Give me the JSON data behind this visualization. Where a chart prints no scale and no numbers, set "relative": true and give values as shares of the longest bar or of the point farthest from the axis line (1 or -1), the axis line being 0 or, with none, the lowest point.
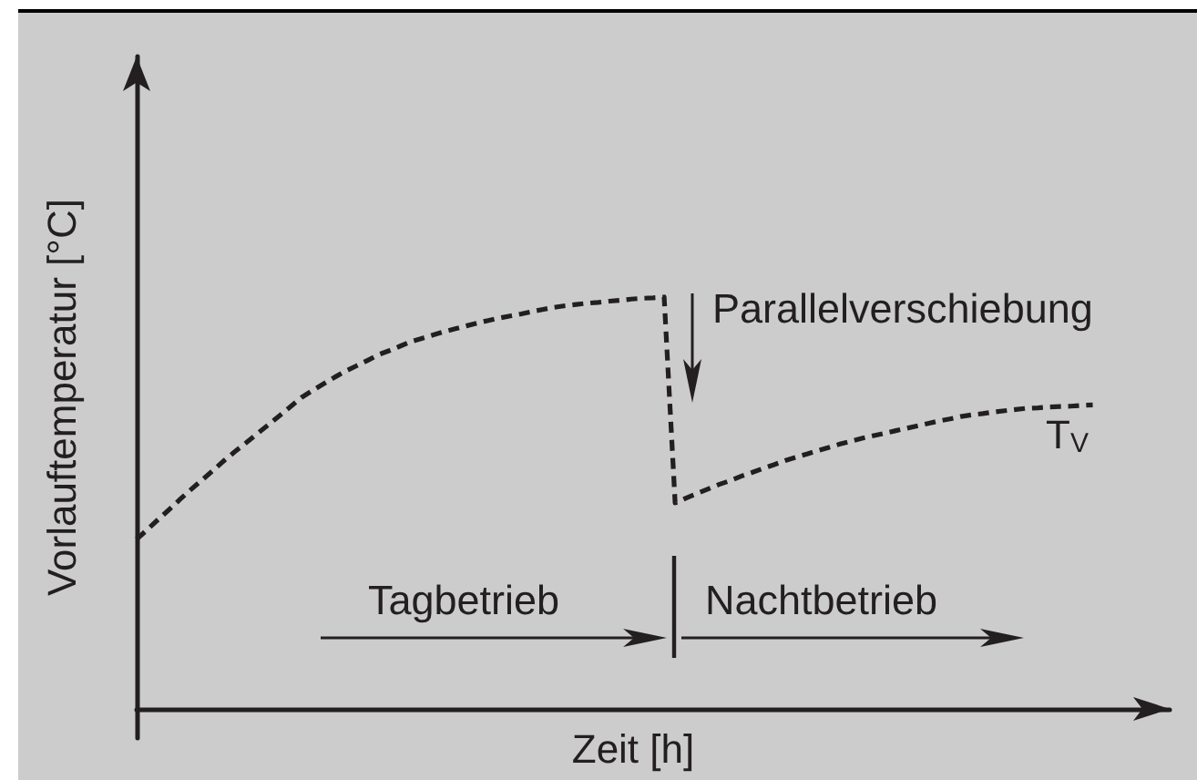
{
  "chart_data": {
    "type": "line",
    "relative": true,
    "xlabel": "Zeit [h]",
    "ylabel": "Vorlauftemperatur [°C]",
    "annotations": [
      "Parallelverschiebung",
      "Tagbetrieb",
      "Nachtbetrieb"
    ],
    "categories": [
      null,
      null,
      null,
      null,
      null,
      null,
      null,
      null,
      null,
      null,
      null,
      null,
      null,
      null,
      null,
      null,
      null,
      null,
      null,
      null,
      null,
      null,
      null,
      null,
      null,
      null,
      null,
      null,
      null,
      null,
      null,
      null,
      null,
      null,
      null,
      null,
      null,
      null,
      null,
      null,
      null,
      null,
      null,
      null,
      null,
      null,
      null,
      null,
      null,
      null,
      null,
      null,
      null,
      null,
      null,
      null,
      null,
      null,
      null,
      null,
      null,
      null,
      null,
      null,
      null,
      null,
      null,
      null,
      null,
      null,
      null,
      null,
      null,
      null,
      null,
      null,
      null,
      null,
      null,
      null,
      null,
      null,
      null,
      null,
      null,
      null,
      null,
      null,
      null,
      null,
      null,
      null,
      null,
      null,
      null
    ],
    "series": [
      {
        "name": "T$_{V}$",
        "color": "#231f20",
        "values": [
          0.412,
          0.436,
          0.461,
          0.485,
          0.51,
          0.534,
          0.557,
          0.58,
          0.604,
          0.626,
          0.647,
          0.669,
          0.69,
          0.712,
          0.734,
          0.756,
          0.773,
          0.789,
          0.805,
          0.82,
          0.833,
          0.846,
          0.86,
          0.87,
          0.881,
          0.892,
          0.9,
          0.908,
          0.916,
          0.923,
          0.93,
          0.937,
          0.943,
          0.949,
          0.954,
          0.959,
          0.965,
          0.97,
          0.975,
          0.979,
          0.982,
          0.985,
          0.987,
          0.99,
          0.992,
          0.995,
          0.997,
          0.998,
          1,
          0.5,
          0.512,
          0.523,
          0.534,
          0.545,
          0.554,
          0.565,
          0.574,
          0.584,
          0.593,
          0.603,
          0.611,
          0.619,
          0.627,
          0.635,
          0.643,
          0.65,
          0.657,
          0.663,
          0.669,
          0.675,
          0.681,
          0.687,
          0.693,
          0.699,
          0.704,
          0.71,
          0.714,
          0.717,
          0.721,
          0.724,
          0.727,
          0.73,
          0.731,
          0.733,
          0.734,
          0.735,
          0.737,
          0.738,
          null,
          null,
          null,
          null,
          null,
          null,
          null
        ]
      }
    ],
    "grid": false,
    "legend": false,
    "marker": "none",
    "line_style": "dashed"
  }
}
